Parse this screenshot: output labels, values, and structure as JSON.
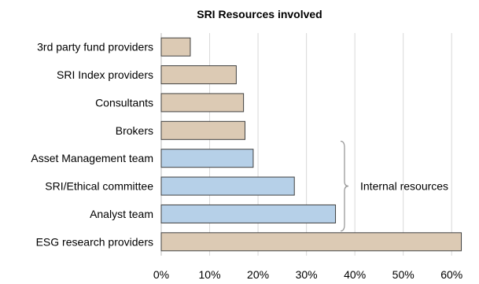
{
  "chart_data": {
    "type": "bar",
    "orientation": "horizontal",
    "title": "SRI Resources involved",
    "xlabel": "",
    "ylabel": "",
    "categories": [
      "3rd party fund providers",
      "SRI Index providers",
      "Consultants",
      "Brokers",
      "Asset Management team",
      "SRI/Ethical committee",
      "Analyst team",
      "ESG research providers"
    ],
    "values": [
      6,
      15.5,
      17,
      17.3,
      19,
      27.5,
      36,
      62
    ],
    "bar_colors": [
      "#dccab4",
      "#dccab4",
      "#dccab4",
      "#dccab4",
      "#b6d0e8",
      "#b6d0e8",
      "#b6d0e8",
      "#dccab4"
    ],
    "xlim": [
      0,
      65
    ],
    "x_ticks": [
      0,
      10,
      20,
      30,
      40,
      50,
      60
    ],
    "x_tick_labels": [
      "0%",
      "10%",
      "20%",
      "30%",
      "40%",
      "50%",
      "60%"
    ],
    "grid": "vertical",
    "annotation": {
      "text": "Internal resources",
      "covers": [
        "Asset Management team",
        "SRI/Ethical committee",
        "Analyst team"
      ]
    }
  }
}
